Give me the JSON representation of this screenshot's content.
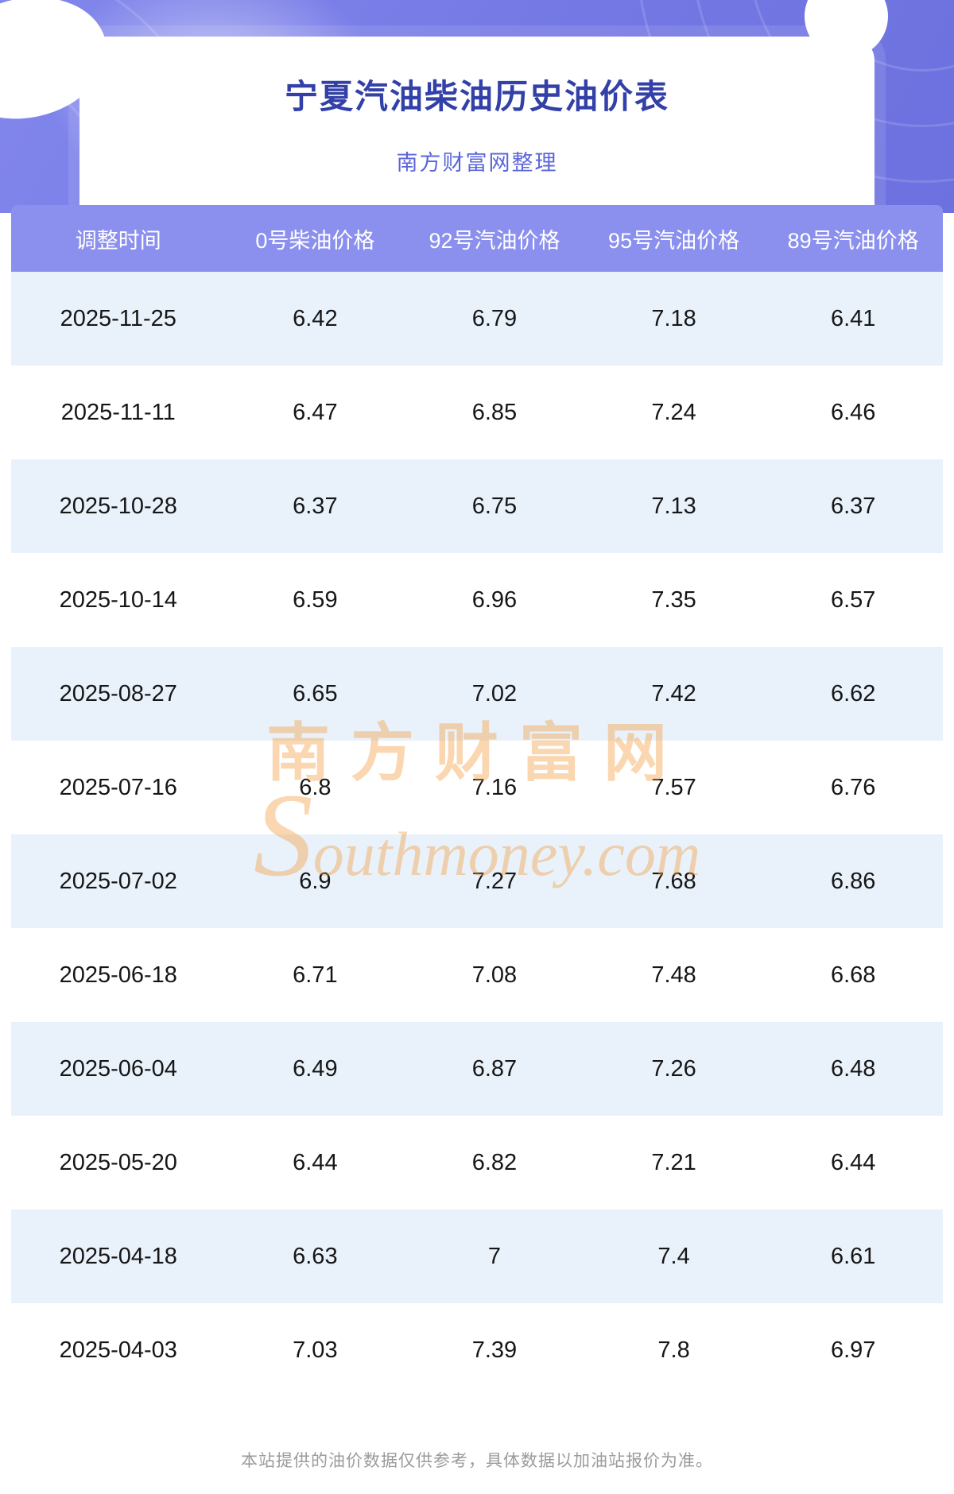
{
  "header": {
    "title": "宁夏汽油柴油历史油价表",
    "subtitle": "南方财富网整理"
  },
  "table": {
    "columns": [
      "调整时间",
      "0号柴油价格",
      "92号汽油价格",
      "95号汽油价格",
      "89号汽油价格"
    ],
    "rows": [
      [
        "2025-11-25",
        "6.42",
        "6.79",
        "7.18",
        "6.41"
      ],
      [
        "2025-11-11",
        "6.47",
        "6.85",
        "7.24",
        "6.46"
      ],
      [
        "2025-10-28",
        "6.37",
        "6.75",
        "7.13",
        "6.37"
      ],
      [
        "2025-10-14",
        "6.59",
        "6.96",
        "7.35",
        "6.57"
      ],
      [
        "2025-08-27",
        "6.65",
        "7.02",
        "7.42",
        "6.62"
      ],
      [
        "2025-07-16",
        "6.8",
        "7.16",
        "7.57",
        "6.76"
      ],
      [
        "2025-07-02",
        "6.9",
        "7.27",
        "7.68",
        "6.86"
      ],
      [
        "2025-06-18",
        "6.71",
        "7.08",
        "7.48",
        "6.68"
      ],
      [
        "2025-06-04",
        "6.49",
        "6.87",
        "7.26",
        "6.48"
      ],
      [
        "2025-05-20",
        "6.44",
        "6.82",
        "7.21",
        "6.44"
      ],
      [
        "2025-04-18",
        "6.63",
        "7",
        "7.4",
        "6.61"
      ],
      [
        "2025-04-03",
        "7.03",
        "7.39",
        "7.8",
        "6.97"
      ]
    ]
  },
  "watermark": {
    "cn": "南方财富网",
    "en": "Southmoney.com"
  },
  "footer": {
    "note": "本站提供的油价数据仅供参考，具体数据以加油站报价为准。"
  },
  "colors": {
    "hero_background": "#7478e4",
    "title_text": "#3340a8",
    "subtitle_text": "#5a66d8",
    "table_header_background": "#8b90ee",
    "table_header_text": "#ffffff",
    "row_alt_background": "#e9f2fb",
    "body_text": "#161616",
    "watermark": "#f2a042",
    "footer_text": "#9b9b9b"
  }
}
